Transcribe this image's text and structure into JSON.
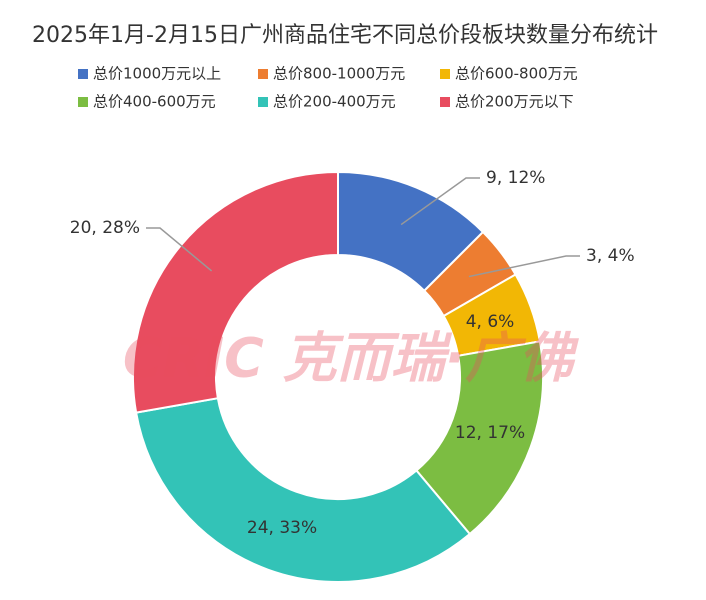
{
  "chart_data": {
    "type": "donut",
    "title": "2025年1月-2月15日广州商品住宅不同总价段板块数量分布统计",
    "watermark": "CRIC 克而瑞·广佛",
    "series": [
      {
        "name": "总价1000万元以上",
        "color": "#4472c4"
      },
      {
        "name": "总价800-1000万元",
        "color": "#ed7d31"
      },
      {
        "name": "总价600-800万元",
        "color": "#f2b705"
      },
      {
        "name": "总价400-600万元",
        "color": "#7cbd42"
      },
      {
        "name": "总价200-400万元",
        "color": "#33c3b7"
      },
      {
        "name": "总价200万元以下",
        "color": "#e84c5f"
      }
    ],
    "values": [
      9,
      3,
      4,
      12,
      24,
      20
    ],
    "value_labels": [
      "9, 12%",
      "3, 4%",
      "4, 6%",
      "12, 17%",
      "24, 33%",
      "20, 28%"
    ]
  }
}
